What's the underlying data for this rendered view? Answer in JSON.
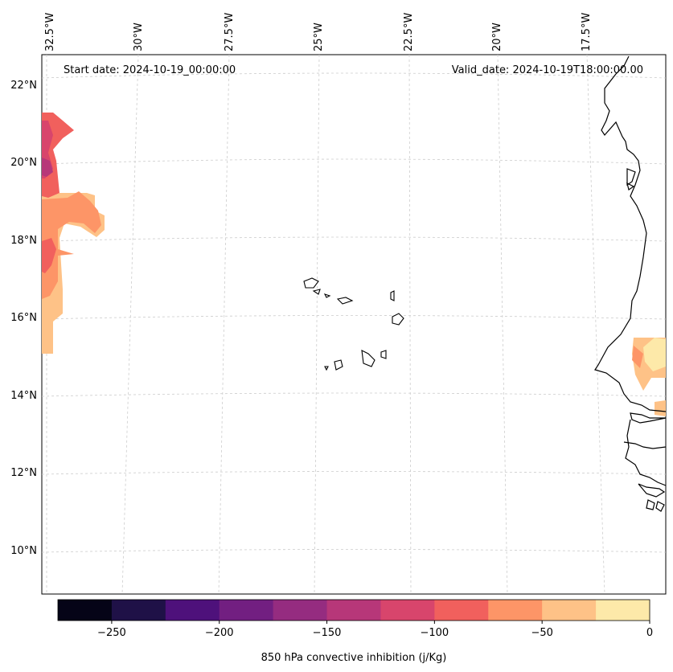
{
  "map": {
    "start_date": "Start date: 2024-10-19_00:00:00",
    "valid_date": "Valid_date: 2024-10-19T18:00:00.00",
    "lon_labels": [
      "32.5°W",
      "30°W",
      "27.5°W",
      "25°W",
      "22.5°W",
      "20°W",
      "17.5°W"
    ],
    "lat_labels": [
      "22°N",
      "20°N",
      "18°N",
      "16°N",
      "14°N",
      "12°N",
      "10°N"
    ],
    "field": "850 hPa convective inhibition"
  },
  "colorbar": {
    "label": "850 hPa convective inhibition (j/Kg)",
    "tick_labels": [
      "−250",
      "−200",
      "−150",
      "−100",
      "−50",
      "0"
    ],
    "tick_values": [
      -250,
      -200,
      -150,
      -100,
      -50,
      0
    ],
    "range": [
      -275,
      0
    ],
    "levels": [
      -275,
      -250,
      -225,
      -200,
      -175,
      -150,
      -125,
      -100,
      -75,
      -50,
      -25,
      0
    ],
    "colors": [
      "#050417",
      "#1f1147",
      "#4e117b",
      "#721f81",
      "#952c80",
      "#b73779",
      "#d8456c",
      "#f1605d",
      "#fd9567",
      "#fec287",
      "#fde9a9"
    ]
  }
}
